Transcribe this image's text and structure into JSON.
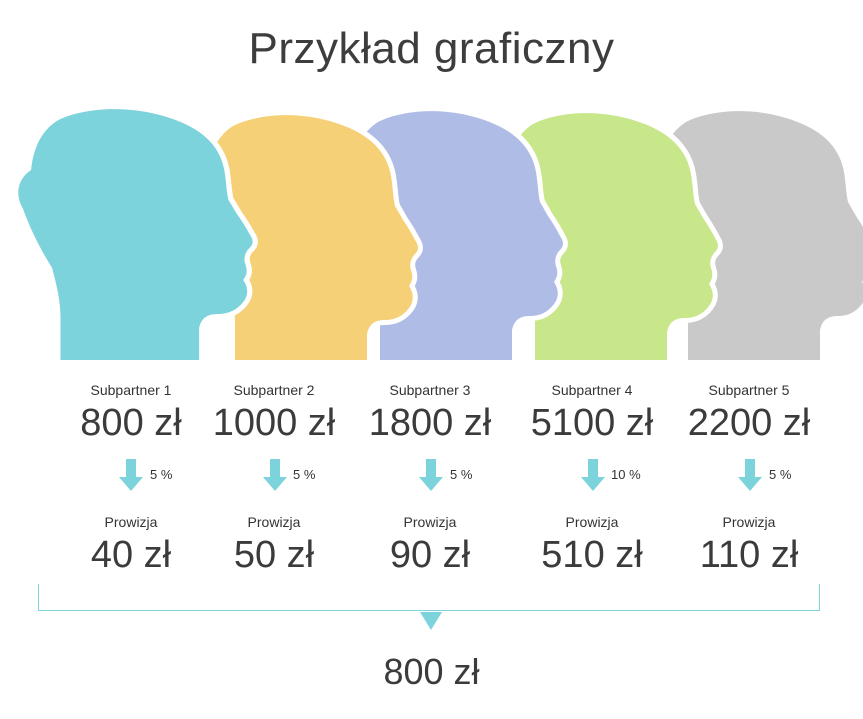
{
  "title": "Przykład graficzny",
  "colors": {
    "accent": "#7dd3dc",
    "head_1": "#7dd3dc",
    "head_2": "#f5d076",
    "head_3": "#afbce6",
    "head_4": "#c8e68a",
    "head_5": "#c9c9c9"
  },
  "subpartners": [
    {
      "label": "Subpartner 1",
      "amount": "800 zł",
      "percent": "5 %",
      "commission_label": "Prowizja",
      "commission": "40 zł"
    },
    {
      "label": "Subpartner 2",
      "amount": "1000 zł",
      "percent": "5 %",
      "commission_label": "Prowizja",
      "commission": "50 zł"
    },
    {
      "label": "Subpartner 3",
      "amount": "1800 zł",
      "percent": "5 %",
      "commission_label": "Prowizja",
      "commission": "90 zł"
    },
    {
      "label": "Subpartner 4",
      "amount": "5100 zł",
      "percent": "10 %",
      "commission_label": "Prowizja",
      "commission": "510 zł"
    },
    {
      "label": "Subpartner 5",
      "amount": "2200 zł",
      "percent": "5 %",
      "commission_label": "Prowizja",
      "commission": "110 zł"
    }
  ],
  "total": "800 zł"
}
